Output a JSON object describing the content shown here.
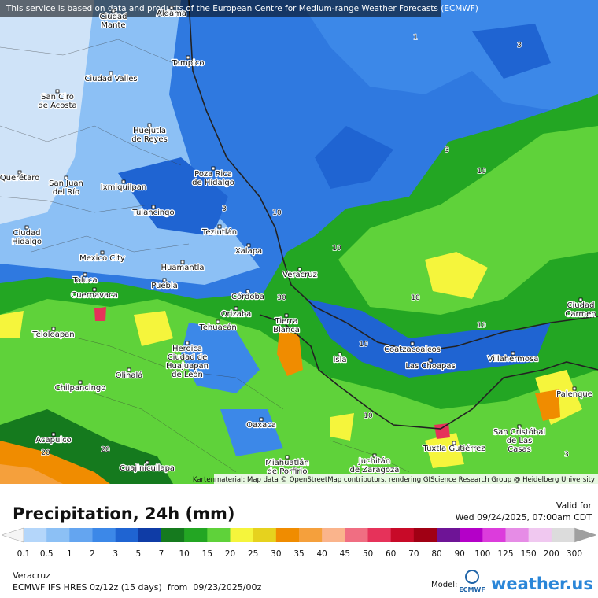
{
  "banner": "This service is based on data and products of the European Centre for Medium-range Weather Forecasts (ECMWF)",
  "attribution": "Kartenmaterial: Map data © OpenStreetMap contributors, rendering GIScience Research Group @ Heidelberg University",
  "map": {
    "places": [
      {
        "lines": [
          "Aldama"
        ]
      },
      {
        "lines": [
          "Ciudad",
          "Mante"
        ]
      },
      {
        "lines": [
          "Tampico"
        ]
      },
      {
        "lines": [
          "Ciudad Valles"
        ]
      },
      {
        "lines": [
          "San Ciro",
          "de Acosta"
        ]
      },
      {
        "lines": [
          "Huejutla",
          "de Reyes"
        ]
      },
      {
        "lines": [
          "Querétaro"
        ]
      },
      {
        "lines": [
          "San Juan",
          "del Río"
        ]
      },
      {
        "lines": [
          "Ixmiquilpan"
        ]
      },
      {
        "lines": [
          "Poza Rica",
          "de Hidalgo"
        ]
      },
      {
        "lines": [
          "Tulancingo"
        ]
      },
      {
        "lines": [
          "Teziutlán"
        ]
      },
      {
        "lines": [
          "Ciudad",
          "Hidalgo"
        ]
      },
      {
        "lines": [
          "Xalapa"
        ]
      },
      {
        "lines": [
          "Mexico City"
        ]
      },
      {
        "lines": [
          "Huamantla"
        ]
      },
      {
        "lines": [
          "Veracruz"
        ]
      },
      {
        "lines": [
          "Toluca"
        ]
      },
      {
        "lines": [
          "Puebla"
        ]
      },
      {
        "lines": [
          "Cuernavaca"
        ]
      },
      {
        "lines": [
          "Córdoba"
        ]
      },
      {
        "lines": [
          "Orizaba"
        ]
      },
      {
        "lines": [
          "Tierra",
          "Blanca"
        ]
      },
      {
        "lines": [
          "Ciudad",
          "Carmen"
        ]
      },
      {
        "lines": [
          "Tehuacán"
        ]
      },
      {
        "lines": [
          "Teloloapan"
        ]
      },
      {
        "lines": [
          "Coatzacoalcos"
        ]
      },
      {
        "lines": [
          "Heroica",
          "Ciudad de",
          "Huajuapan",
          "de León"
        ]
      },
      {
        "lines": [
          "Villahermosa"
        ]
      },
      {
        "lines": [
          "Isla"
        ]
      },
      {
        "lines": [
          "Las Choapas"
        ]
      },
      {
        "lines": [
          "Olinalá"
        ]
      },
      {
        "lines": [
          "Chilpancingo"
        ]
      },
      {
        "lines": [
          "Palenque"
        ]
      },
      {
        "lines": [
          "Oaxaca"
        ]
      },
      {
        "lines": [
          "San Cristóbal",
          "de Las",
          "Casas"
        ]
      },
      {
        "lines": [
          "Acapulco"
        ]
      },
      {
        "lines": [
          "Tuxtla Gutiérrez"
        ]
      },
      {
        "lines": [
          "Miahuatlán",
          "de Porfirio"
        ]
      },
      {
        "lines": [
          "Juchitán",
          "de Zaragoza"
        ]
      },
      {
        "lines": [
          "Cuajinicuilapa"
        ]
      }
    ],
    "contour_labels": [
      1,
      3,
      3,
      10,
      10,
      10,
      10,
      10,
      10,
      30,
      20,
      20,
      3,
      10,
      3
    ]
  },
  "legend": {
    "title": "Precipitation, 24h (mm)",
    "valid_label": "Valid for",
    "valid_time": "Wed 09/24/2025, 07:00am CDT",
    "scale_labels": [
      0.1,
      0.5,
      1,
      2,
      3,
      5,
      7,
      10,
      15,
      20,
      25,
      30,
      35,
      40,
      45,
      50,
      60,
      70,
      80,
      90,
      100,
      125,
      150,
      200,
      300
    ],
    "colors": [
      "#b4d6fa",
      "#8cc0f5",
      "#64a5f0",
      "#3c88e8",
      "#1f64d2",
      "#0f3ca6",
      "#157a1e",
      "#23a623",
      "#5fd23a",
      "#f5f53c",
      "#e6d21e",
      "#f08c00",
      "#f5a03c",
      "#fab48c",
      "#f06e82",
      "#e6325a",
      "#c80a28",
      "#a00014",
      "#6e1496",
      "#b400c8",
      "#dc3cdc",
      "#e68ce6",
      "#f0c8f0",
      "#dcdcdc"
    ],
    "below_color": "#f5f5f5",
    "above_color": "#a0a0a0"
  },
  "footer": {
    "location": "Veracruz",
    "model_run": "ECMWF IFS HRES 0z/12z (15 days)  from  09/23/2025/00z",
    "model_label": "Model:",
    "model_logo": "ECMWF",
    "brand": "weather.us"
  }
}
